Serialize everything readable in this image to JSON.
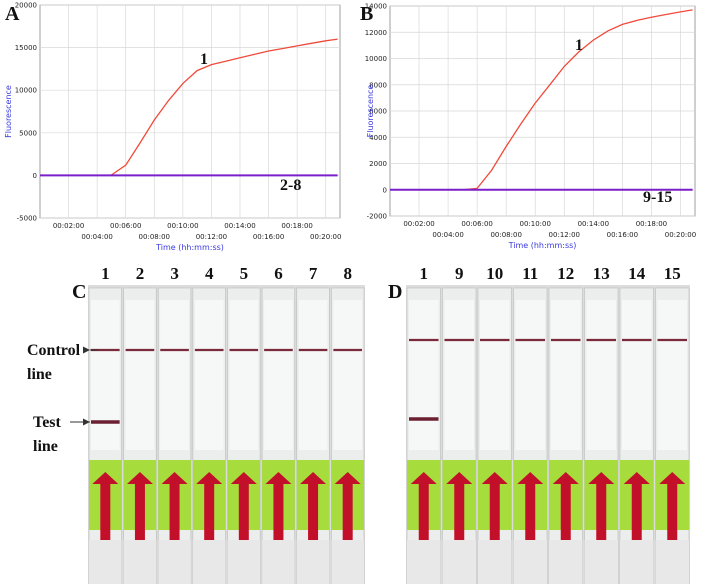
{
  "chart_data": [
    {
      "type": "line",
      "panel_label": "A",
      "ylabel": "Fluorescence",
      "xlabel": "Time (hh:mm:ss)",
      "x": [
        0,
        60,
        120,
        180,
        240,
        300,
        360,
        420,
        480,
        540,
        600,
        660,
        720,
        780,
        840,
        900,
        960,
        1020,
        1080,
        1140,
        1200,
        1250
      ],
      "series": [
        {
          "name": "1",
          "color": "#f04a3a",
          "values": [
            0,
            0,
            0,
            0,
            0,
            50,
            1200,
            3800,
            6500,
            8800,
            10800,
            12300,
            13000,
            13400,
            13800,
            14200,
            14600,
            14900,
            15200,
            15500,
            15800,
            16000
          ]
        },
        {
          "name": "2-8",
          "color": "#7a1fc9",
          "values": [
            0,
            0,
            0,
            0,
            0,
            0,
            0,
            0,
            0,
            0,
            0,
            0,
            0,
            0,
            0,
            0,
            0,
            0,
            0,
            0,
            0,
            0
          ]
        }
      ],
      "xlim": [
        0,
        1260
      ],
      "xticks": [
        {
          "value": 120,
          "label": "00:02:00"
        },
        {
          "value": 240,
          "label": "00:04:00"
        },
        {
          "value": 360,
          "label": "00:06:00"
        },
        {
          "value": 480,
          "label": "00:08:00"
        },
        {
          "value": 600,
          "label": "00:10:00"
        },
        {
          "value": 720,
          "label": "00:12:00"
        },
        {
          "value": 840,
          "label": "00:14:00"
        },
        {
          "value": 960,
          "label": "00:16:00"
        },
        {
          "value": 1080,
          "label": "00:18:00"
        },
        {
          "value": 1200,
          "label": "00:20:00"
        }
      ],
      "ylim": [
        -5000,
        20000
      ],
      "yticks": [
        -5000,
        0,
        5000,
        10000,
        15000,
        20000
      ],
      "grid": true
    },
    {
      "type": "line",
      "panel_label": "B",
      "ylabel": "Fluorescence",
      "xlabel": "Time (hh:mm:ss)",
      "x": [
        0,
        60,
        120,
        180,
        240,
        300,
        360,
        420,
        480,
        540,
        600,
        660,
        720,
        780,
        840,
        900,
        960,
        1020,
        1080,
        1140,
        1200,
        1250
      ],
      "series": [
        {
          "name": "1",
          "color": "#f04a3a",
          "values": [
            0,
            0,
            0,
            0,
            0,
            0,
            100,
            1500,
            3300,
            5000,
            6600,
            8000,
            9400,
            10500,
            11400,
            12100,
            12600,
            12900,
            13150,
            13350,
            13550,
            13700
          ]
        },
        {
          "name": "9-15",
          "color": "#7a1fc9",
          "values": [
            0,
            0,
            0,
            0,
            0,
            0,
            0,
            0,
            0,
            0,
            0,
            0,
            0,
            0,
            0,
            0,
            0,
            0,
            0,
            0,
            0,
            0
          ]
        }
      ],
      "xlim": [
        0,
        1260
      ],
      "xticks": [
        {
          "value": 120,
          "label": "00:02:00"
        },
        {
          "value": 240,
          "label": "00:04:00"
        },
        {
          "value": 360,
          "label": "00:06:00"
        },
        {
          "value": 480,
          "label": "00:08:00"
        },
        {
          "value": 600,
          "label": "00:10:00"
        },
        {
          "value": 720,
          "label": "00:12:00"
        },
        {
          "value": 840,
          "label": "00:14:00"
        },
        {
          "value": 960,
          "label": "00:16:00"
        },
        {
          "value": 1080,
          "label": "00:18:00"
        },
        {
          "value": 1200,
          "label": "00:20:00"
        }
      ],
      "ylim": [
        -2000,
        14000
      ],
      "yticks": [
        -2000,
        0,
        2000,
        4000,
        6000,
        8000,
        10000,
        12000,
        14000
      ],
      "grid": true
    }
  ],
  "photos": [
    {
      "panel_label": "C",
      "lanes": [
        "1",
        "2",
        "3",
        "4",
        "5",
        "6",
        "7",
        "8"
      ],
      "control_label": [
        "Control",
        "line"
      ],
      "test_label": [
        "Test",
        "line"
      ]
    },
    {
      "panel_label": "D",
      "lanes": [
        "1",
        "9",
        "10",
        "11",
        "12",
        "13",
        "14",
        "15"
      ]
    }
  ]
}
